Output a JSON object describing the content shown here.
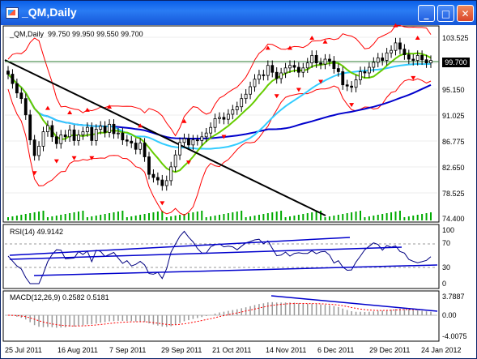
{
  "window": {
    "title": "_QM,Daily",
    "buttons": {
      "minimize": "_",
      "maximize": "□",
      "close": "✕"
    }
  },
  "price_panel": {
    "legend": "_QM,Daily  99.750 99.950 99.550 99.700",
    "current_price": "99.700",
    "y_ticks": [
      "103.525",
      "99.400",
      "95.150",
      "91.025",
      "86.775",
      "82.650",
      "78.525",
      "74.400"
    ]
  },
  "rsi_panel": {
    "legend": "RSI(14) 49.9142",
    "y_ticks": [
      "100",
      "70",
      "30",
      "0"
    ]
  },
  "macd_panel": {
    "legend": "MACD(12,26,9) 0.2582 0.5181",
    "y_ticks": [
      "3.7887",
      "0.00",
      "-4.0075"
    ]
  },
  "x_axis": {
    "labels": [
      "25 Jul 2011",
      "16 Aug 2011",
      "7 Sep 2011",
      "29 Sep 2011",
      "21 Oct 2011",
      "14 Nov 2011",
      "6 Dec 2011",
      "29 Dec 2011",
      "24 Jan 2012"
    ]
  },
  "colors": {
    "candles": "#000000",
    "bands": "#ff0000",
    "ma_fast": "#66cc00",
    "ma_mid": "#33ccff",
    "ma_slow": "#0000cc",
    "trendline": "#000000",
    "volume": "#00aa00",
    "fractal": "#ff0000",
    "rsi": "#000080",
    "macd_hist": "#999999",
    "macd_signal": "#ff0000"
  },
  "chart_data": {
    "type": "line",
    "close_price_series": [
      97.5,
      96.0,
      94.5,
      93.6,
      91.0,
      87.0,
      84.5,
      86.0,
      88.3,
      89.3,
      87.5,
      86.4,
      87.8,
      87.5,
      88.6,
      86.9,
      87.8,
      88.3,
      89.0,
      86.9,
      88.7,
      89.2,
      88.2,
      89.5,
      88.0,
      88.1,
      87.0,
      86.8,
      86.5,
      85.5,
      86.5,
      84.3,
      81.5,
      81.0,
      80.6,
      79.7,
      80.5,
      82.7,
      84.6,
      86.6,
      87.2,
      86.2,
      87.0,
      86.9,
      87.5,
      88.1,
      89.0,
      90.4,
      90.6,
      90.3,
      91.1,
      91.8,
      92.3,
      93.6,
      94.3,
      95.5,
      96.7,
      97.4,
      97.3,
      98.9,
      97.8,
      96.8,
      97.7,
      98.5,
      98.9,
      98.6,
      97.8,
      98.5,
      99.3,
      100.5,
      99.3,
      99.1,
      99.9,
      99.6,
      98.4,
      97.9,
      95.8,
      95.6,
      95.4,
      96.6,
      97.9,
      97.7,
      98.6,
      99.4,
      100.1,
      99.7,
      100.9,
      101.3,
      102.5,
      101.5,
      100.6,
      99.9,
      99.7,
      100.5,
      99.8,
      99.3,
      99.7
    ]
  }
}
